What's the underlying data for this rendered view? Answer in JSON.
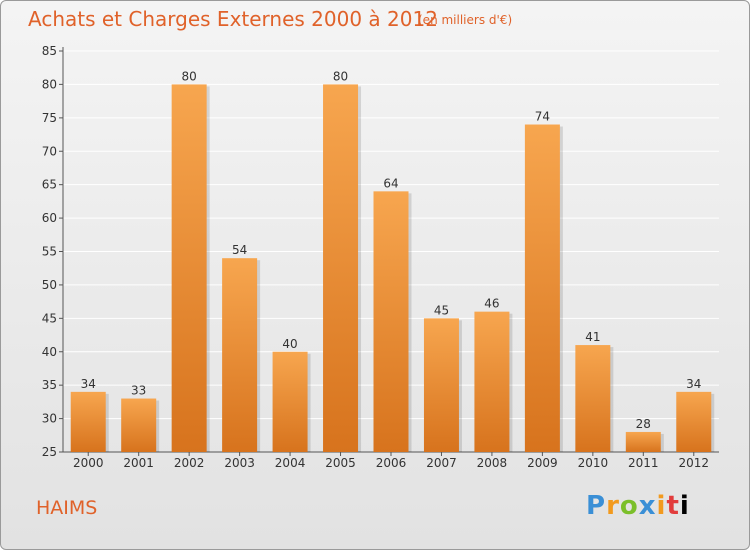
{
  "header": {
    "title": "Achats et Charges Externes 2000 à 2012",
    "unit": "(en milliers d'€)"
  },
  "footer": {
    "commune": "HAIMS",
    "logo_letters": [
      "P",
      "r",
      "o",
      "x",
      "i",
      "t",
      "i"
    ]
  },
  "chart_data": {
    "type": "bar",
    "title": "Achats et Charges Externes 2000 à 2012",
    "subtitle": "(en milliers d'€)",
    "categories": [
      "2000",
      "2001",
      "2002",
      "2003",
      "2004",
      "2005",
      "2006",
      "2007",
      "2008",
      "2009",
      "2010",
      "2011",
      "2012"
    ],
    "values": [
      34,
      33,
      80,
      54,
      40,
      80,
      64,
      45,
      46,
      74,
      41,
      28,
      34
    ],
    "ylim": [
      25,
      85
    ],
    "yticks": [
      25,
      30,
      35,
      40,
      45,
      50,
      55,
      60,
      65,
      70,
      75,
      80,
      85
    ],
    "grid": true,
    "bar_color_top": "#f7a64f",
    "bar_color_bottom": "#d7731d"
  }
}
